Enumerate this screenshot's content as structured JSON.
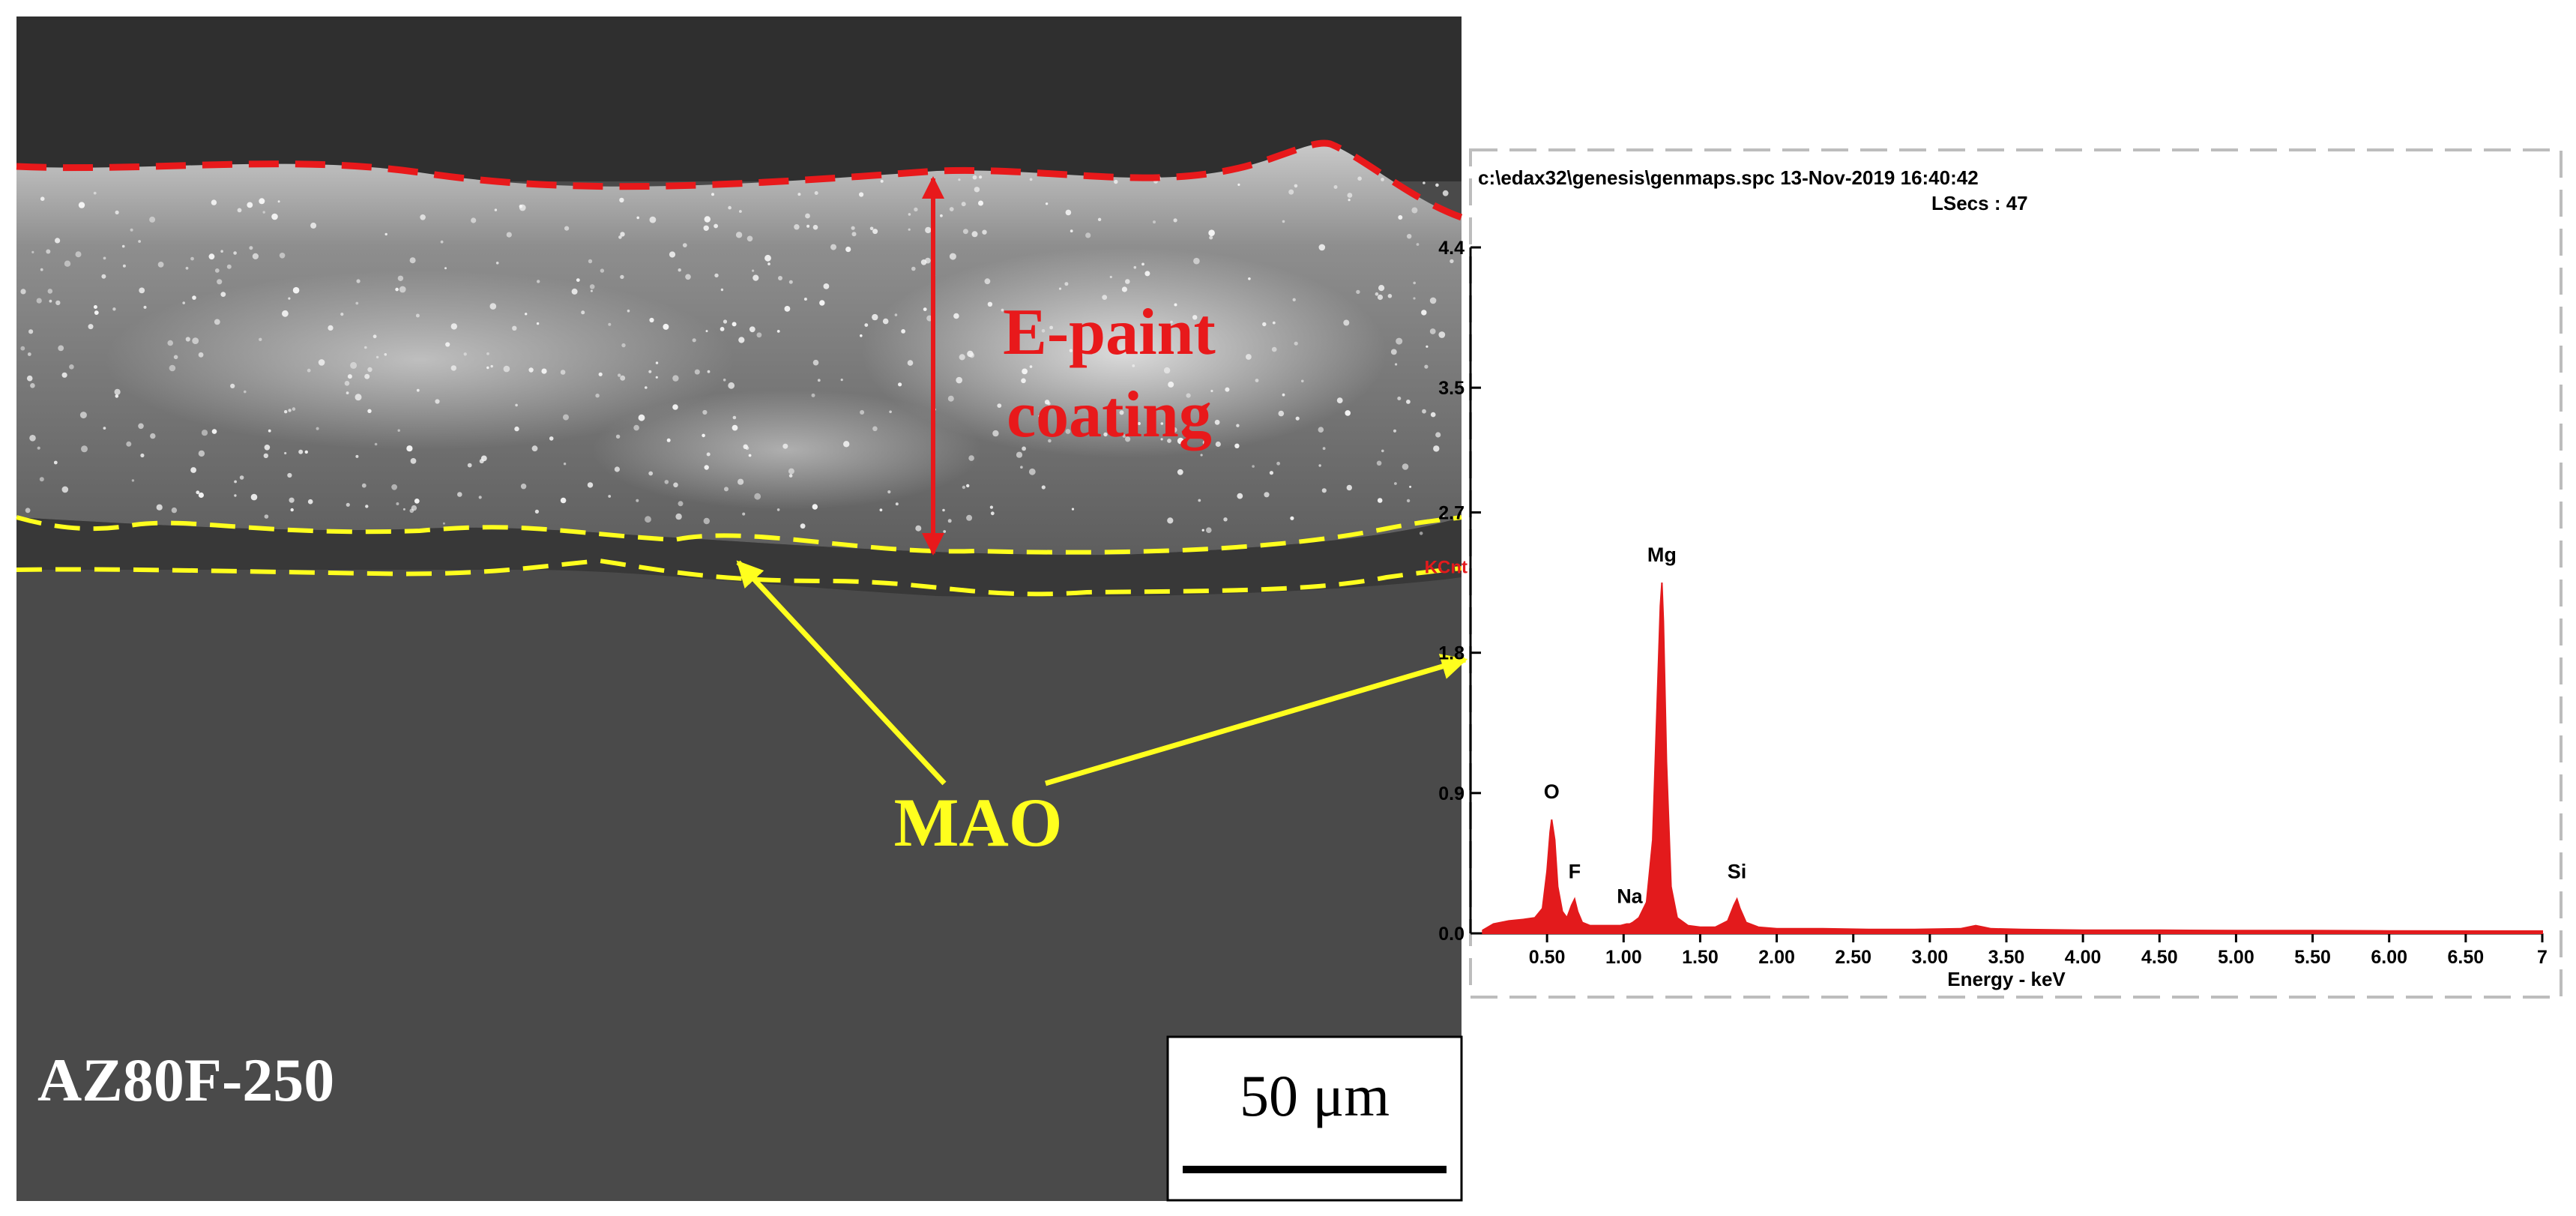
{
  "figure": {
    "sem": {
      "sample_label": "AZ80F-250",
      "scale_bar_label": "50 μm",
      "epaint_label_line1": "E-paint",
      "epaint_label_line2": "coating",
      "mao_label": "MAO"
    },
    "eds": {
      "header_line1": "c:\\edax32\\genesis\\genmaps.spc  13-Nov-2019 16:40:42",
      "header_line2": "LSecs :  47",
      "y_unit": "KCnt",
      "x_axis_title": "Energy - keV"
    },
    "colors": {
      "epaint": "#e8191b",
      "mao": "#ffff1e",
      "spectrum": "#e31a1c",
      "sem_background": "#4a4a4a"
    }
  },
  "chart_data": {
    "type": "area",
    "title": "",
    "xlabel": "Energy - keV",
    "ylabel": "KCnt",
    "xlim": [
      0.0,
      7.0
    ],
    "ylim": [
      0.0,
      4.4
    ],
    "x_ticks": [
      0.5,
      1.0,
      1.5,
      2.0,
      2.5,
      3.0,
      3.5,
      4.0,
      4.5,
      5.0,
      5.5,
      6.0,
      6.5,
      7.0
    ],
    "x_tick_labels": [
      "0.50",
      "1.00",
      "1.50",
      "2.00",
      "2.50",
      "3.00",
      "3.50",
      "4.00",
      "4.50",
      "5.00",
      "5.50",
      "6.00",
      "6.50",
      "7"
    ],
    "y_ticks": [
      0.0,
      0.9,
      1.8,
      2.7,
      3.5,
      4.4
    ],
    "y_tick_labels": [
      "0.0",
      "0.9",
      "1.8",
      "2.7",
      "3.5",
      "4.4"
    ],
    "peaks": [
      {
        "element": "O",
        "energy": 0.53,
        "height": 0.73
      },
      {
        "element": "F",
        "energy": 0.68,
        "height": 0.22
      },
      {
        "element": "Na",
        "energy": 1.04,
        "height": 0.06
      },
      {
        "element": "Mg",
        "energy": 1.25,
        "height": 2.25
      },
      {
        "element": "Si",
        "energy": 1.74,
        "height": 0.22
      }
    ],
    "spectrum": {
      "x": [
        0.08,
        0.15,
        0.25,
        0.35,
        0.42,
        0.47,
        0.5,
        0.52,
        0.53,
        0.55,
        0.57,
        0.6,
        0.63,
        0.66,
        0.68,
        0.7,
        0.73,
        0.78,
        0.85,
        0.92,
        0.98,
        1.02,
        1.04,
        1.06,
        1.1,
        1.15,
        1.19,
        1.22,
        1.24,
        1.25,
        1.26,
        1.28,
        1.31,
        1.35,
        1.42,
        1.5,
        1.6,
        1.68,
        1.72,
        1.74,
        1.76,
        1.8,
        1.88,
        2.0,
        2.3,
        2.6,
        2.9,
        3.2,
        3.3,
        3.35,
        3.4,
        3.6,
        4.0,
        4.5,
        5.0,
        5.5,
        6.0,
        6.5,
        7.0
      ],
      "y": [
        0.02,
        0.06,
        0.08,
        0.09,
        0.1,
        0.16,
        0.4,
        0.65,
        0.73,
        0.6,
        0.3,
        0.14,
        0.1,
        0.18,
        0.22,
        0.14,
        0.07,
        0.05,
        0.05,
        0.05,
        0.05,
        0.06,
        0.06,
        0.07,
        0.1,
        0.2,
        0.6,
        1.5,
        2.1,
        2.25,
        2.0,
        1.1,
        0.3,
        0.1,
        0.05,
        0.04,
        0.04,
        0.08,
        0.18,
        0.22,
        0.16,
        0.07,
        0.04,
        0.03,
        0.03,
        0.025,
        0.025,
        0.03,
        0.05,
        0.04,
        0.03,
        0.025,
        0.02,
        0.02,
        0.018,
        0.018,
        0.016,
        0.015,
        0.015
      ]
    }
  }
}
